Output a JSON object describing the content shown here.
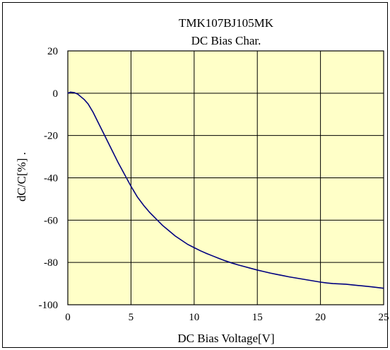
{
  "chart_data": {
    "type": "line",
    "title": "TMK107BJ105MK",
    "subtitle": "DC Bias Char.",
    "xlabel": "DC Bias Voltage[V]",
    "ylabel": "dC/C[%] .",
    "xlim": [
      0,
      25
    ],
    "ylim": [
      -100,
      20
    ],
    "xticks": [
      0,
      5,
      10,
      15,
      20,
      25
    ],
    "yticks": [
      20,
      0,
      -20,
      -40,
      -60,
      -80,
      -100
    ],
    "grid": true,
    "plot_background": "#ffffc8",
    "line_color": "#000080",
    "series": [
      {
        "x": [
          0,
          0.2,
          0.5,
          0.8,
          1.0,
          1.3,
          1.6,
          2.0,
          2.5,
          3.0,
          3.5,
          4.0,
          4.5,
          5.0,
          5.5,
          6.0,
          6.5,
          7.0,
          7.5,
          8.0,
          8.5,
          9.0,
          9.5,
          10.0,
          10.5,
          11.0,
          11.5,
          12.0,
          12.5,
          13.0,
          13.5,
          14.0,
          14.5,
          15.0,
          15.5,
          16.0,
          16.5,
          17.0,
          17.5,
          18.0,
          18.5,
          19.0,
          19.5,
          20.0,
          20.5,
          21.0,
          22.0,
          23.0,
          24.0,
          25.0
        ],
        "y": [
          0,
          0.5,
          0.3,
          -0.5,
          -1.5,
          -3,
          -5,
          -9,
          -15,
          -21,
          -27,
          -33,
          -38.5,
          -44,
          -49,
          -53,
          -56.5,
          -59.5,
          -62.5,
          -65,
          -67.5,
          -69.5,
          -71.5,
          -73,
          -74.5,
          -75.8,
          -77,
          -78.2,
          -79.3,
          -80.3,
          -81.2,
          -82,
          -82.8,
          -83.6,
          -84.3,
          -85,
          -85.6,
          -86.2,
          -86.8,
          -87.3,
          -87.8,
          -88.3,
          -88.8,
          -89.3,
          -89.7,
          -90,
          -90.3,
          -90.9,
          -91.5,
          -92.2
        ]
      }
    ]
  }
}
